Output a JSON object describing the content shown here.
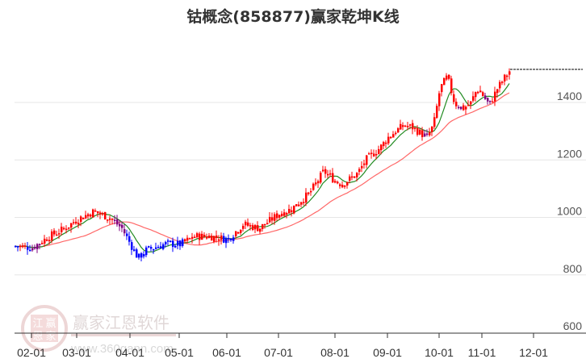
{
  "title": "钴概念(858877)赢家乾坤K线",
  "watermark": {
    "name": "赢家江恩软件",
    "url": "www.360gann.com",
    "seal_chars": [
      "江",
      "赢",
      "恩",
      "家"
    ]
  },
  "colors": {
    "up": "#ff0000",
    "down": "#0000ff",
    "special": "#800080",
    "ma_short": "#228b22",
    "ma_long": "#ff4d4d",
    "grid": "#e6e6e6",
    "axis": "#333333",
    "last_price_line": "#000000"
  },
  "chart_data": {
    "type": "candlestick",
    "title": "钴概念(858877)赢家乾坤K线",
    "xlabel": "",
    "ylabel": "",
    "ylim": [
      600,
      1520
    ],
    "y_ticks": [
      600,
      800,
      1000,
      1200,
      1400
    ],
    "x_ticks": [
      "02-01",
      "03-01",
      "04-01",
      "05-01",
      "06-01",
      "07-01",
      "08-01",
      "09-01",
      "10-01",
      "11-01",
      "12-01"
    ],
    "grid": true,
    "legend": "none",
    "last_price_dashed_line": 1515,
    "close_path": [
      {
        "x": "01-20",
        "close": 900
      },
      {
        "x": "02-01",
        "close": 895
      },
      {
        "x": "02-10",
        "close": 934
      },
      {
        "x": "02-20",
        "close": 960
      },
      {
        "x": "03-01",
        "close": 993
      },
      {
        "x": "03-10",
        "close": 1021
      },
      {
        "x": "03-20",
        "close": 998
      },
      {
        "x": "03-25",
        "close": 962
      },
      {
        "x": "04-01",
        "close": 858
      },
      {
        "x": "04-05",
        "close": 886
      },
      {
        "x": "04-20",
        "close": 909
      },
      {
        "x": "05-01",
        "close": 906
      },
      {
        "x": "05-10",
        "close": 934
      },
      {
        "x": "05-20",
        "close": 934
      },
      {
        "x": "06-01",
        "close": 923
      },
      {
        "x": "06-10",
        "close": 976
      },
      {
        "x": "06-20",
        "close": 962
      },
      {
        "x": "07-01",
        "close": 1013
      },
      {
        "x": "07-10",
        "close": 1029
      },
      {
        "x": "07-15",
        "close": 1060
      },
      {
        "x": "07-20",
        "close": 1083
      },
      {
        "x": "07-25",
        "close": 1125
      },
      {
        "x": "07-28",
        "close": 1161
      },
      {
        "x": "08-01",
        "close": 1125
      },
      {
        "x": "08-05",
        "close": 1116
      },
      {
        "x": "08-10",
        "close": 1133
      },
      {
        "x": "08-15",
        "close": 1153
      },
      {
        "x": "08-20",
        "close": 1200
      },
      {
        "x": "08-28",
        "close": 1243
      },
      {
        "x": "09-01",
        "close": 1279
      },
      {
        "x": "09-05",
        "close": 1302
      },
      {
        "x": "09-10",
        "close": 1321
      },
      {
        "x": "09-15",
        "close": 1313
      },
      {
        "x": "09-20",
        "close": 1293
      },
      {
        "x": "09-25",
        "close": 1279
      },
      {
        "x": "09-28",
        "close": 1321
      },
      {
        "x": "10-01",
        "close": 1448
      },
      {
        "x": "10-05",
        "close": 1490
      },
      {
        "x": "10-10",
        "close": 1398
      },
      {
        "x": "10-15",
        "close": 1378
      },
      {
        "x": "10-20",
        "close": 1398
      },
      {
        "x": "10-28",
        "close": 1448
      },
      {
        "x": "11-01",
        "close": 1425
      },
      {
        "x": "11-05",
        "close": 1391
      },
      {
        "x": "11-10",
        "close": 1448
      },
      {
        "x": "11-15",
        "close": 1490
      },
      {
        "x": "11-18",
        "close": 1509
      }
    ],
    "series": [
      {
        "name": "MA short (green)",
        "values_at_ticks": [
          900,
          985,
          920,
          915,
          1000,
          1130,
          1240,
          1290,
          1390,
          1430
        ]
      },
      {
        "name": "MA long (red)",
        "values_at_ticks": [
          895,
          960,
          1000,
          905,
          930,
          1050,
          1150,
          1270,
          1350,
          1420
        ]
      }
    ]
  }
}
